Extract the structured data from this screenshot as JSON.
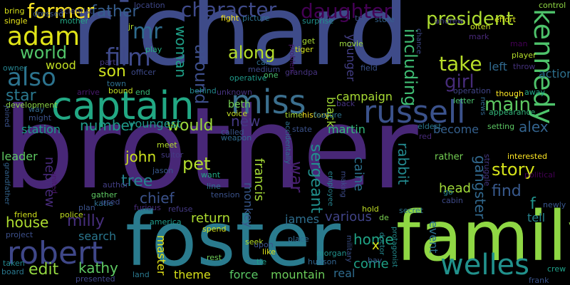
{
  "words": [
    {
      "text": "brother",
      "color": "#482777"
    },
    {
      "text": "richard",
      "color": "#3e4b89"
    },
    {
      "text": "foster",
      "color": "#2a7b8e"
    },
    {
      "text": "family",
      "color": "#8fd744"
    },
    {
      "text": "captain",
      "color": "#22a884"
    },
    {
      "text": "russell",
      "color": "#3b528b"
    },
    {
      "text": "miss",
      "color": "#3b6f8e"
    },
    {
      "text": "robert",
      "color": "#3f4788"
    },
    {
      "text": "welles",
      "color": "#21918c"
    },
    {
      "text": "adam",
      "color": "#e0e418"
    },
    {
      "text": "also",
      "color": "#2c738e"
    },
    {
      "text": "film",
      "color": "#3e4989"
    },
    {
      "text": "kennedy",
      "color": "#4ec36b"
    },
    {
      "text": "character",
      "color": "#3f4a8a"
    },
    {
      "text": "father",
      "color": "#365d8d"
    },
    {
      "text": "daughter",
      "color": "#440154"
    },
    {
      "text": "president",
      "color": "#addc30"
    },
    {
      "text": "former",
      "color": "#fde725"
    },
    {
      "text": "mr",
      "color": "#2f6c8e"
    },
    {
      "text": "world",
      "color": "#52c569"
    },
    {
      "text": "wood",
      "color": "#c2df23"
    },
    {
      "text": "son",
      "color": "#cde11d"
    },
    {
      "text": "along",
      "color": "#b5de2b"
    },
    {
      "text": "take",
      "color": "#b8de29"
    },
    {
      "text": "girl",
      "color": "#472c7a"
    },
    {
      "text": "main",
      "color": "#5ec962"
    },
    {
      "text": "left",
      "color": "#30698e"
    },
    {
      "text": "including",
      "color": "#3fbc73"
    },
    {
      "text": "woman",
      "color": "#1fa088"
    },
    {
      "text": "around",
      "color": "#3d4e8a"
    },
    {
      "text": "star",
      "color": "#2a788e"
    },
    {
      "text": "station",
      "color": "#1e9c89"
    },
    {
      "text": "would",
      "color": "#9bd93c"
    },
    {
      "text": "new",
      "color": "#443983"
    },
    {
      "text": "youngest",
      "color": "#1f958b"
    },
    {
      "text": "number",
      "color": "#1f9a8a"
    },
    {
      "text": "john",
      "color": "#cae11f"
    },
    {
      "text": "pet",
      "color": "#b2dd2d"
    },
    {
      "text": "tree",
      "color": "#26828e"
    },
    {
      "text": "chief",
      "color": "#3b528b"
    },
    {
      "text": "war",
      "color": "#482071"
    },
    {
      "text": "sergeant",
      "color": "#21908d"
    },
    {
      "text": "francis",
      "color": "#a5db36"
    },
    {
      "text": "rabbit",
      "color": "#23898e"
    },
    {
      "text": "caine",
      "color": "#2c718e"
    },
    {
      "text": "gangster",
      "color": "#31688e"
    },
    {
      "text": "story",
      "color": "#d5e21a"
    },
    {
      "text": "find",
      "color": "#38598c"
    },
    {
      "text": "alex",
      "color": "#33638d"
    },
    {
      "text": "head",
      "color": "#a0da39"
    },
    {
      "text": "edit",
      "color": "#95d840"
    },
    {
      "text": "kathy",
      "color": "#5ec962"
    },
    {
      "text": "house",
      "color": "#addc30"
    },
    {
      "text": "milly",
      "color": "#472f7d"
    },
    {
      "text": "search",
      "color": "#2a768e"
    },
    {
      "text": "return",
      "color": "#addc30"
    },
    {
      "text": "various",
      "color": "#404387"
    },
    {
      "text": "home",
      "color": "#20a386"
    },
    {
      "text": "come",
      "color": "#1fa287"
    },
    {
      "text": "campaign",
      "color": "#a8db34"
    },
    {
      "text": "black",
      "color": "#a2da37"
    },
    {
      "text": "martin",
      "color": "#32b67a"
    },
    {
      "text": "become",
      "color": "#35608d"
    },
    {
      "text": "beth",
      "color": "#75d054"
    },
    {
      "text": "younger",
      "color": "#433e85"
    },
    {
      "text": "master",
      "color": "#e5e419"
    },
    {
      "text": "force",
      "color": "#5ac864"
    },
    {
      "text": "mountain",
      "color": "#6ccd5a"
    },
    {
      "text": "real",
      "color": "#2f6c8e"
    },
    {
      "text": "theme",
      "color": "#d8e219"
    },
    {
      "text": "monkey",
      "color": "#38588c"
    },
    {
      "text": "james",
      "color": "#2e6e8e"
    },
    {
      "text": "event",
      "color": "#2c718e"
    },
    {
      "text": "tell",
      "color": "#26828e"
    },
    {
      "text": "x",
      "color": "#dde318"
    },
    {
      "text": "f",
      "color": "#20928c"
    },
    {
      "text": "leader",
      "color": "#5ec962"
    },
    {
      "text": "nephew",
      "color": "#472a7a"
    },
    {
      "text": "behind",
      "color": "#23888e"
    },
    {
      "text": "voice",
      "color": "#c2df23"
    },
    {
      "text": "weapon",
      "color": "#306a8e"
    },
    {
      "text": "like",
      "color": "#dde318"
    },
    {
      "text": "place",
      "color": "#31688e"
    },
    {
      "text": "time",
      "color": "#a8db34"
    },
    {
      "text": "history",
      "color": "#fde725"
    },
    {
      "text": "picture",
      "color": "#2d708e"
    },
    {
      "text": "fight",
      "color": "#f6e620"
    },
    {
      "text": "movie",
      "color": "#9dd93b"
    },
    {
      "text": "store",
      "color": "#34618d"
    },
    {
      "text": "field",
      "color": "#3b528b"
    },
    {
      "text": "tiger",
      "color": "#d2e21b"
    },
    {
      "text": "get",
      "color": "#a8db34"
    },
    {
      "text": "andrew",
      "color": "#433e85"
    },
    {
      "text": "effort",
      "color": "#d8e219"
    },
    {
      "text": "control",
      "color": "#90d743"
    },
    {
      "text": "action",
      "color": "#2d718e"
    },
    {
      "text": "player",
      "color": "#b5de2b"
    },
    {
      "text": "throw",
      "color": "#46327e"
    },
    {
      "text": "man",
      "color": "#440154"
    },
    {
      "text": "mark",
      "color": "#482878"
    },
    {
      "text": "often",
      "color": "#c8e020"
    },
    {
      "text": "away",
      "color": "#20a386"
    },
    {
      "text": "though",
      "color": "#fde725"
    },
    {
      "text": "operation",
      "color": "#414487"
    },
    {
      "text": "letter",
      "color": "#4ac16d"
    },
    {
      "text": "appearance",
      "color": "#33b67a"
    },
    {
      "text": "setting",
      "color": "#5cc863"
    },
    {
      "text": "news",
      "color": "#31688e"
    },
    {
      "text": "eldest",
      "color": "#2a788e"
    },
    {
      "text": "red",
      "color": "#472a7a"
    },
    {
      "text": "rather",
      "color": "#75d054"
    },
    {
      "text": "interested",
      "color": "#fde725"
    },
    {
      "text": "political",
      "color": "#440154"
    },
    {
      "text": "newly",
      "color": "#39568c"
    },
    {
      "text": "crew",
      "color": "#1fa088"
    },
    {
      "text": "frank",
      "color": "#3a538b"
    },
    {
      "text": "cabin",
      "color": "#3e4a89"
    },
    {
      "text": "go",
      "color": "#26828e"
    },
    {
      "text": "struggle",
      "color": "#453781"
    },
    {
      "text": "secret",
      "color": "#2c738e"
    },
    {
      "text": "doctor",
      "color": "#23888e"
    },
    {
      "text": "protagonist",
      "color": "#228b8d"
    },
    {
      "text": "morgan",
      "color": "#21918c"
    },
    {
      "text": "hold",
      "color": "#c0df25"
    },
    {
      "text": "bring",
      "color": "#d8e219"
    },
    {
      "text": "single",
      "color": "#e7e419"
    },
    {
      "text": "dressed",
      "color": "#39568c"
    },
    {
      "text": "mother",
      "color": "#22a884"
    },
    {
      "text": "location",
      "color": "#3f4788"
    },
    {
      "text": "jr",
      "color": "#b5de2b"
    },
    {
      "text": "play",
      "color": "#26ad81"
    },
    {
      "text": "part",
      "color": "#453882"
    },
    {
      "text": "owner",
      "color": "#26828e"
    },
    {
      "text": "officer",
      "color": "#3e4a89"
    },
    {
      "text": "town",
      "color": "#2e6f8e"
    },
    {
      "text": "arrive",
      "color": "#481a6c"
    },
    {
      "text": "bound",
      "color": "#c2df23"
    },
    {
      "text": "end",
      "color": "#37b878"
    },
    {
      "text": "unknown",
      "color": "#46327e"
    },
    {
      "text": "development",
      "color": "#8bd646"
    },
    {
      "text": "call",
      "color": "#2e6e8e"
    },
    {
      "text": "medium",
      "color": "#3e4989"
    },
    {
      "text": "operative",
      "color": "#1f9a8a"
    },
    {
      "text": "one",
      "color": "#4ac16d"
    },
    {
      "text": "problem",
      "color": "#481769"
    },
    {
      "text": "surprise",
      "color": "#21918c"
    },
    {
      "text": "called",
      "color": "#3a548c"
    },
    {
      "text": "feature",
      "color": "#2c718e"
    },
    {
      "text": "back",
      "color": "#46337f"
    },
    {
      "text": "accidentally",
      "color": "#2e6e8e"
    },
    {
      "text": "meet",
      "color": "#b5de2b"
    },
    {
      "text": "suitor",
      "color": "#443a83"
    },
    {
      "text": "jason",
      "color": "#38588c"
    },
    {
      "text": "want",
      "color": "#22a785"
    },
    {
      "text": "line",
      "color": "#2e6f8e"
    },
    {
      "text": "tension",
      "color": "#3b528b"
    },
    {
      "text": "author",
      "color": "#433e85"
    },
    {
      "text": "gather",
      "color": "#5ec962"
    },
    {
      "text": "katie",
      "color": "#2e6e8e"
    },
    {
      "text": "used",
      "color": "#3e4989"
    },
    {
      "text": "plan",
      "color": "#3b528b"
    },
    {
      "text": "furious",
      "color": "#472d7b"
    },
    {
      "text": "refuse",
      "color": "#443983"
    },
    {
      "text": "police",
      "color": "#c2df23"
    },
    {
      "text": "friend",
      "color": "#d2e21b"
    },
    {
      "text": "project",
      "color": "#3c4f8a"
    },
    {
      "text": "united",
      "color": "#481668"
    },
    {
      "text": "employee",
      "color": "#26828e"
    },
    {
      "text": "making",
      "color": "#3e4c8a"
    },
    {
      "text": "grandfather",
      "color": "#33638d"
    },
    {
      "text": "grandpa",
      "color": "#46337f"
    },
    {
      "text": "spend",
      "color": "#d5e21a"
    },
    {
      "text": "seek",
      "color": "#b5de2b"
    },
    {
      "text": "upon",
      "color": "#3b528b"
    },
    {
      "text": "tie",
      "color": "#1f9e89"
    },
    {
      "text": "rest",
      "color": "#6ece58"
    },
    {
      "text": "military",
      "color": "#3b528b"
    },
    {
      "text": "hudson",
      "color": "#32648e"
    },
    {
      "text": "bay",
      "color": "#38588c"
    },
    {
      "text": "de",
      "color": "#7ad151"
    },
    {
      "text": "board",
      "color": "#2a788e"
    },
    {
      "text": "taken",
      "color": "#24878e"
    },
    {
      "text": "presented",
      "color": "#404688"
    },
    {
      "text": "land",
      "color": "#2a788e"
    },
    {
      "text": "america",
      "color": "#1f9a8a"
    },
    {
      "text": "might",
      "color": "#3b528b"
    },
    {
      "text": "way",
      "color": "#31688e"
    },
    {
      "text": "joined",
      "color": "#3b528b"
    },
    {
      "text": "scientist",
      "color": "#414487"
    },
    {
      "text": "chance",
      "color": "#3e4989"
    },
    {
      "text": "try",
      "color": "#3b528b"
    },
    {
      "text": "state",
      "color": "#3b528b"
    }
  ]
}
